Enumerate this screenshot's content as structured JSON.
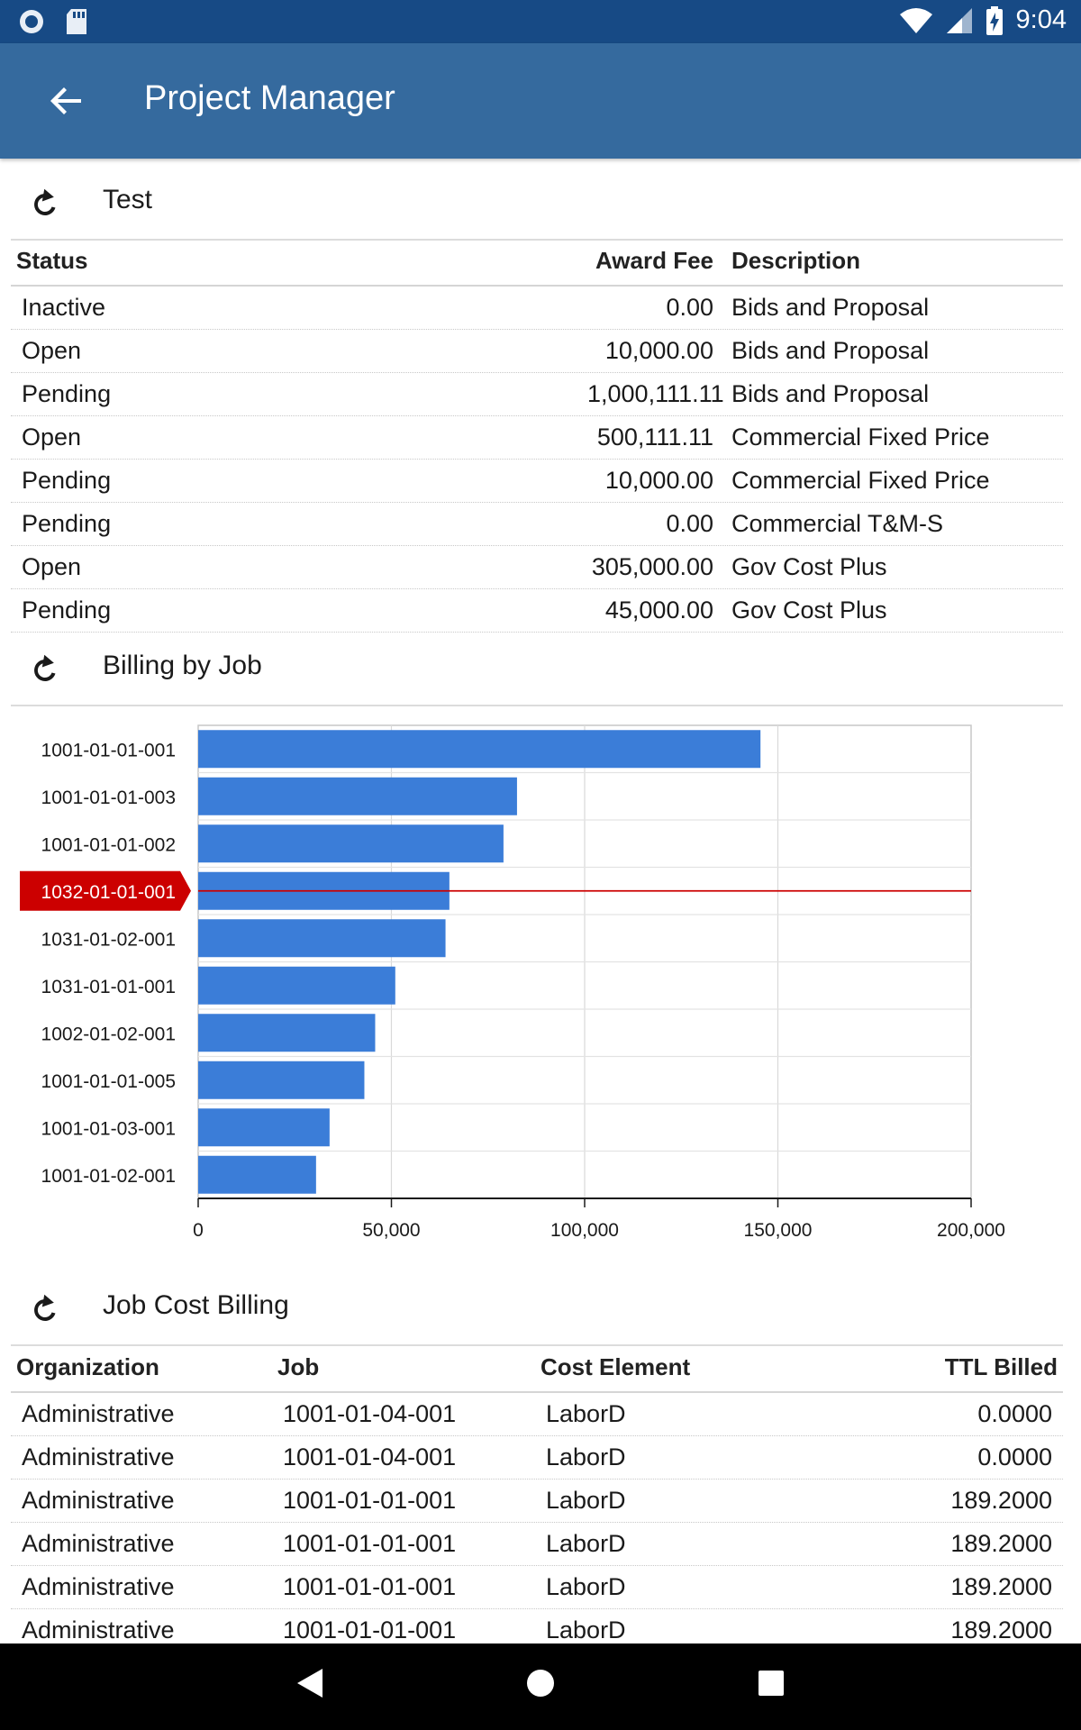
{
  "status_bar": {
    "time": "9:04",
    "icons": [
      "record-icon",
      "sd-card-icon",
      "wifi-icon",
      "cell-signal-icon",
      "battery-charging-icon"
    ]
  },
  "app_bar": {
    "title": "Project Manager",
    "back_icon": "arrow-left-icon"
  },
  "section_test": {
    "title": "Test",
    "columns": {
      "status": "Status",
      "award_fee": "Award Fee",
      "description": "Description"
    },
    "rows": [
      {
        "status": "Inactive",
        "award_fee": "0.00",
        "description": "Bids and Proposal"
      },
      {
        "status": "Open",
        "award_fee": "10,000.00",
        "description": "Bids and Proposal"
      },
      {
        "status": "Pending",
        "award_fee": "1,000,111.11",
        "description": "Bids and Proposal"
      },
      {
        "status": "Open",
        "award_fee": "500,111.11",
        "description": "Commercial Fixed Price"
      },
      {
        "status": "Pending",
        "award_fee": "10,000.00",
        "description": "Commercial Fixed Price"
      },
      {
        "status": "Pending",
        "award_fee": "0.00",
        "description": "Commercial T&M-S"
      },
      {
        "status": "Open",
        "award_fee": "305,000.00",
        "description": "Gov Cost Plus"
      },
      {
        "status": "Pending",
        "award_fee": "45,000.00",
        "description": "Gov Cost Plus"
      }
    ]
  },
  "section_billing": {
    "title": "Billing by Job"
  },
  "chart_data": {
    "type": "bar",
    "orientation": "horizontal",
    "categories": [
      "1001-01-01-001",
      "1001-01-01-003",
      "1001-01-01-002",
      "1032-01-01-001",
      "1031-01-02-001",
      "1031-01-01-001",
      "1002-01-02-001",
      "1001-01-01-005",
      "1001-01-03-001",
      "1001-01-02-001"
    ],
    "values": [
      145500,
      82500,
      79000,
      65000,
      64000,
      51000,
      45800,
      43000,
      34000,
      30500
    ],
    "highlighted_category": "1032-01-01-001",
    "xlim": [
      0,
      200000
    ],
    "x_ticks": [
      "0",
      "50,000",
      "100,000",
      "150,000",
      "200,000"
    ],
    "x_tick_values": [
      0,
      50000,
      100000,
      150000,
      200000
    ],
    "bar_color": "#3b7dd8",
    "highlight_color": "#cc0000",
    "grid": true
  },
  "section_jobcost": {
    "title": "Job Cost Billing",
    "columns": {
      "org": "Organization",
      "job": "Job",
      "cost_element": "Cost Element",
      "ttl_billed": "TTL Billed"
    },
    "rows": [
      {
        "org": "Administrative",
        "job": "1001-01-04-001",
        "cost_element": "LaborD",
        "ttl_billed": "0.0000"
      },
      {
        "org": "Administrative",
        "job": "1001-01-04-001",
        "cost_element": "LaborD",
        "ttl_billed": "0.0000"
      },
      {
        "org": "Administrative",
        "job": "1001-01-01-001",
        "cost_element": "LaborD",
        "ttl_billed": "189.2000"
      },
      {
        "org": "Administrative",
        "job": "1001-01-01-001",
        "cost_element": "LaborD",
        "ttl_billed": "189.2000"
      },
      {
        "org": "Administrative",
        "job": "1001-01-01-001",
        "cost_element": "LaborD",
        "ttl_billed": "189.2000"
      },
      {
        "org": "Administrative",
        "job": "1001-01-01-001",
        "cost_element": "LaborD",
        "ttl_billed": "189.2000"
      }
    ]
  },
  "nav_bar": {
    "icons": [
      "back-triangle-icon",
      "home-circle-icon",
      "recents-square-icon"
    ]
  }
}
